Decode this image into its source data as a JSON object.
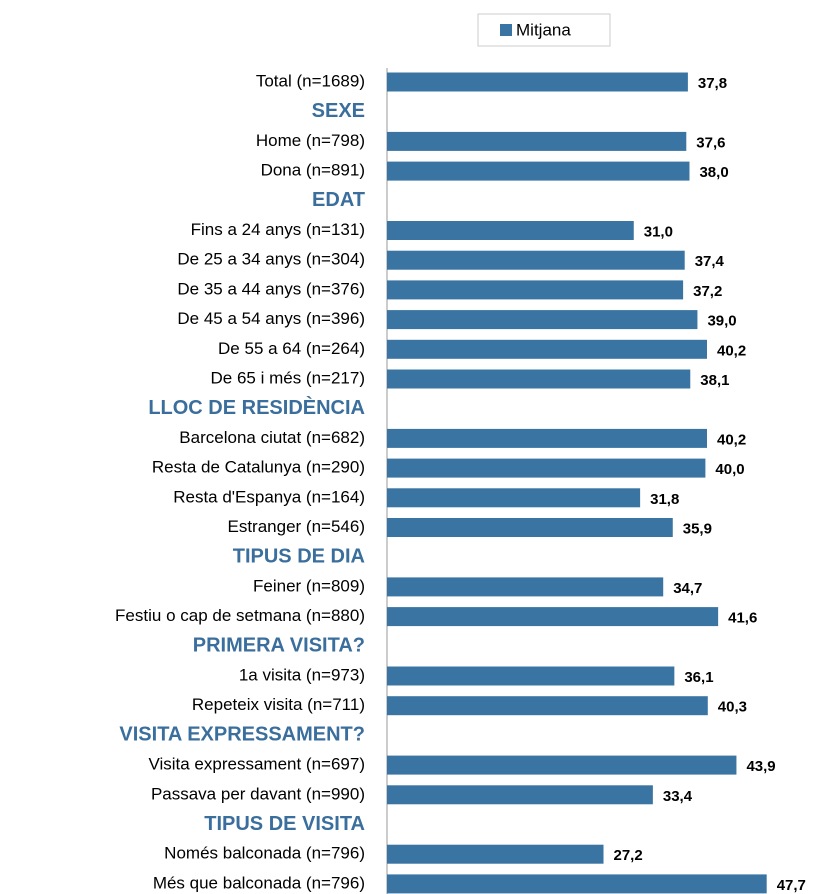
{
  "chart_data": {
    "type": "bar",
    "orientation": "horizontal",
    "categories": [
      "Total (n=1689)",
      "SEXE",
      "Home (n=798)",
      "Dona (n=891)",
      "EDAT",
      "Fins a 24 anys (n=131)",
      "De 25 a 34 anys (n=304)",
      "De 35 a 44 anys (n=376)",
      "De 45 a 54 anys (n=396)",
      "De 55 a 64 (n=264)",
      "De 65 i més (n=217)",
      "LLOC DE RESIDÈNCIA",
      "Barcelona ciutat (n=682)",
      "Resta de Catalunya (n=290)",
      "Resta d'Espanya (n=164)",
      "Estranger (n=546)",
      "TIPUS DE DIA",
      "Feiner (n=809)",
      "Festiu o cap de setmana (n=880)",
      "PRIMERA VISITA?",
      "1a visita (n=973)",
      "Repeteix visita (n=711)",
      "VISITA EXPRESSAMENT?",
      "Visita expressament (n=697)",
      "Passava per davant (n=990)",
      "TIPUS DE VISITA",
      "Només balconada (n=796)",
      "Més que balconada (n=796)"
    ],
    "series": [
      {
        "name": "Mitjana",
        "color": "#3a74a2",
        "values": [
          37.8,
          null,
          37.6,
          38.0,
          null,
          31.0,
          37.4,
          37.2,
          39.0,
          40.2,
          38.1,
          null,
          40.2,
          40.0,
          31.8,
          35.9,
          null,
          34.7,
          41.6,
          null,
          36.1,
          40.3,
          null,
          43.9,
          33.4,
          null,
          27.2,
          47.7
        ],
        "value_labels": [
          "37,8",
          null,
          "37,6",
          "38,0",
          null,
          "31,0",
          "37,4",
          "37,2",
          "39,0",
          "40,2",
          "38,1",
          null,
          "40,2",
          "40,0",
          "31,8",
          "35,9",
          null,
          "34,7",
          "41,6",
          null,
          "36,1",
          "40,3",
          null,
          "43,9",
          "33,4",
          null,
          "27,2",
          "47,7"
        ]
      }
    ],
    "xlim": [
      0,
      55
    ],
    "header_color": "#3a6e9c"
  }
}
